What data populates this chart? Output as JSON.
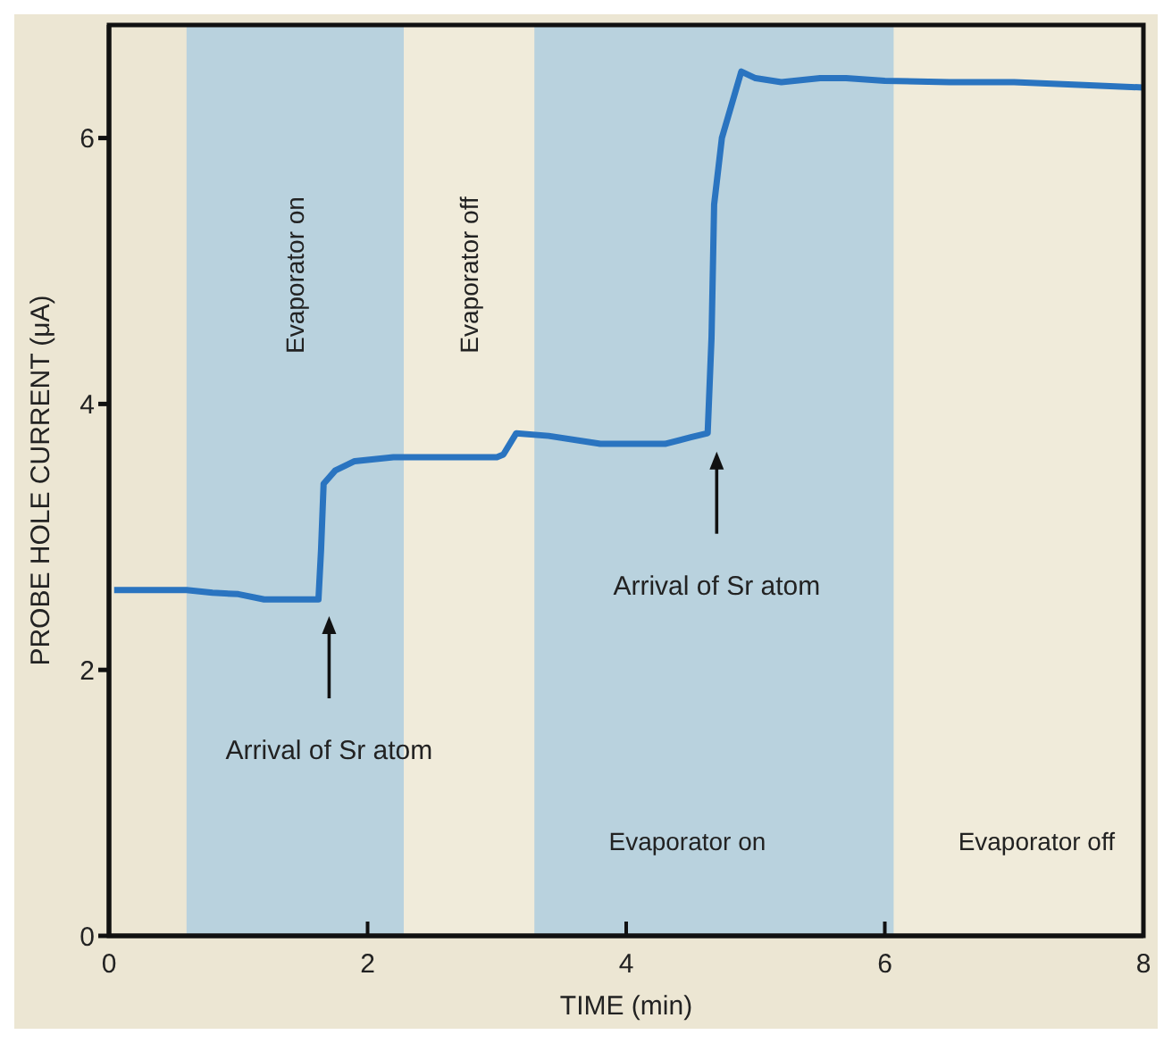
{
  "chart_data": {
    "type": "line",
    "xlabel": "TIME (min)",
    "ylabel": "PROBE HOLE CURRENT (μA)",
    "x": [
      0.04,
      0.6,
      0.8,
      1.0,
      1.2,
      1.62,
      1.64,
      1.66,
      1.75,
      1.9,
      2.2,
      2.6,
      3.0,
      3.05,
      3.15,
      3.4,
      3.8,
      4.3,
      4.5,
      4.63,
      4.66,
      4.68,
      4.74,
      4.8,
      4.89,
      5.0,
      5.2,
      5.5,
      5.7,
      6.0,
      6.5,
      7.0,
      7.5,
      8.0
    ],
    "series": [
      {
        "color": "#2a74c0",
        "values": [
          2.6,
          2.6,
          2.58,
          2.57,
          2.53,
          2.53,
          2.9,
          3.4,
          3.5,
          3.57,
          3.6,
          3.6,
          3.6,
          3.62,
          3.78,
          3.76,
          3.7,
          3.7,
          3.75,
          3.78,
          4.5,
          5.5,
          6.0,
          6.2,
          6.5,
          6.45,
          6.42,
          6.45,
          6.45,
          6.43,
          6.42,
          6.42,
          6.4,
          6.38
        ]
      }
    ],
    "xlim": [
      0,
      8
    ],
    "ylim": [
      0,
      6.85
    ],
    "xticks": [
      0,
      2,
      4,
      6,
      8
    ],
    "yticks": [
      0,
      2,
      4,
      6
    ],
    "bands": [
      {
        "axis": "x",
        "from": 0.6,
        "to": 2.28,
        "label": "Evaporator on",
        "color": "#b9d2de"
      },
      {
        "axis": "x",
        "from": 2.28,
        "to": 3.29,
        "label": "Evaporator off",
        "color": "#f0ebda"
      },
      {
        "axis": "x",
        "from": 3.29,
        "to": 6.07,
        "label": "Evaporator on",
        "color": "#b9d2de"
      },
      {
        "axis": "x",
        "from": 6.07,
        "to": 8,
        "label": "Evaporator off",
        "color": "#f0ebda"
      }
    ],
    "annotations": [
      "Arrival of Sr atom",
      "Arrival of Sr atom"
    ],
    "grid": false,
    "legend": false,
    "marker": "none",
    "line_style": "solid"
  }
}
